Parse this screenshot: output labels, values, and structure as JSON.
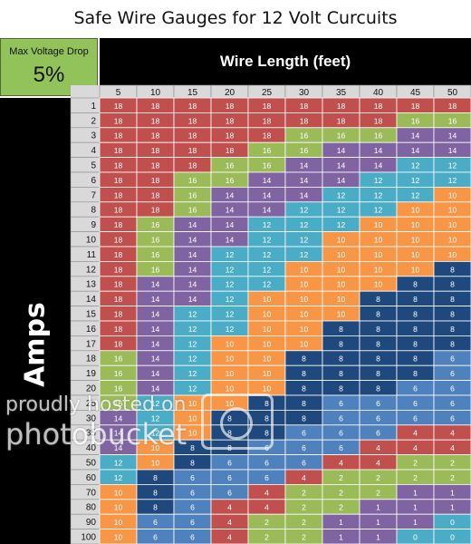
{
  "title": "Safe Wire Gauges for 12 Volt Curcuits",
  "voltage_drop": {
    "label": "Max Voltage Drop",
    "value": "5%"
  },
  "colors": {
    "18": "#c0504d",
    "16": "#9bbb59",
    "14": "#8064a2",
    "12": "#4bacc6",
    "10": "#f79646",
    "8": "#1f497d",
    "6": "#4f81bd",
    "4": "#c0504d",
    "2": "#9bbb59",
    "1": "#8064a2",
    "0": "#4bacc6",
    "header_bg": "#d9d9d9",
    "band_bg": "#000000",
    "voltage_box": "#92c25a"
  },
  "watermark": {
    "line1": "proudly hosted on",
    "line2": "photobucket"
  },
  "chart_data": {
    "type": "table",
    "title": "Safe Wire Gauges for 12 Volt Curcuits",
    "xlabel": "Wire Length (feet)",
    "ylabel": "Amps",
    "columns": [
      5,
      10,
      15,
      20,
      25,
      30,
      35,
      40,
      45,
      50
    ],
    "rows": [
      {
        "amps": 1,
        "gauges": [
          18,
          18,
          18,
          18,
          18,
          18,
          18,
          18,
          18,
          18
        ]
      },
      {
        "amps": 2,
        "gauges": [
          18,
          18,
          18,
          18,
          18,
          18,
          18,
          18,
          16,
          16
        ]
      },
      {
        "amps": 3,
        "gauges": [
          18,
          18,
          18,
          18,
          18,
          16,
          16,
          16,
          14,
          14
        ]
      },
      {
        "amps": 4,
        "gauges": [
          18,
          18,
          18,
          18,
          16,
          16,
          14,
          14,
          14,
          14
        ]
      },
      {
        "amps": 5,
        "gauges": [
          18,
          18,
          18,
          16,
          16,
          14,
          14,
          14,
          12,
          12
        ]
      },
      {
        "amps": 6,
        "gauges": [
          18,
          18,
          16,
          16,
          14,
          14,
          14,
          12,
          12,
          12
        ]
      },
      {
        "amps": 7,
        "gauges": [
          18,
          18,
          16,
          14,
          14,
          14,
          12,
          12,
          12,
          10
        ]
      },
      {
        "amps": 8,
        "gauges": [
          18,
          18,
          16,
          14,
          14,
          12,
          12,
          12,
          10,
          10
        ]
      },
      {
        "amps": 9,
        "gauges": [
          18,
          16,
          14,
          14,
          12,
          12,
          12,
          10,
          10,
          10
        ]
      },
      {
        "amps": 10,
        "gauges": [
          18,
          16,
          14,
          14,
          12,
          12,
          10,
          10,
          10,
          10
        ]
      },
      {
        "amps": 11,
        "gauges": [
          18,
          16,
          14,
          12,
          12,
          12,
          10,
          10,
          10,
          10
        ]
      },
      {
        "amps": 12,
        "gauges": [
          18,
          16,
          14,
          12,
          12,
          10,
          10,
          10,
          10,
          8
        ]
      },
      {
        "amps": 13,
        "gauges": [
          18,
          14,
          14,
          12,
          12,
          10,
          10,
          10,
          8,
          8
        ]
      },
      {
        "amps": 14,
        "gauges": [
          18,
          14,
          14,
          12,
          10,
          10,
          10,
          8,
          8,
          8
        ]
      },
      {
        "amps": 15,
        "gauges": [
          18,
          14,
          12,
          12,
          10,
          10,
          10,
          8,
          8,
          8
        ]
      },
      {
        "amps": 16,
        "gauges": [
          18,
          14,
          12,
          12,
          10,
          10,
          8,
          8,
          8,
          8
        ]
      },
      {
        "amps": 17,
        "gauges": [
          18,
          14,
          12,
          10,
          10,
          10,
          8,
          8,
          8,
          8
        ]
      },
      {
        "amps": 18,
        "gauges": [
          16,
          14,
          12,
          10,
          10,
          8,
          8,
          8,
          8,
          6
        ]
      },
      {
        "amps": 19,
        "gauges": [
          16,
          14,
          12,
          10,
          10,
          8,
          8,
          8,
          8,
          6
        ]
      },
      {
        "amps": 20,
        "gauges": [
          16,
          14,
          12,
          10,
          10,
          8,
          8,
          8,
          6,
          6
        ]
      },
      {
        "amps": 25,
        "gauges": [
          16,
          12,
          10,
          10,
          8,
          8,
          6,
          6,
          6,
          6
        ]
      },
      {
        "amps": 30,
        "gauges": [
          14,
          12,
          10,
          8,
          8,
          8,
          6,
          6,
          6,
          6
        ]
      },
      {
        "amps": 35,
        "gauges": [
          14,
          12,
          10,
          8,
          8,
          6,
          6,
          6,
          4,
          4
        ]
      },
      {
        "amps": 40,
        "gauges": [
          14,
          10,
          8,
          8,
          6,
          6,
          6,
          4,
          4,
          4
        ]
      },
      {
        "amps": 50,
        "gauges": [
          12,
          10,
          8,
          6,
          6,
          6,
          4,
          4,
          2,
          2
        ]
      },
      {
        "amps": 60,
        "gauges": [
          12,
          8,
          6,
          6,
          6,
          4,
          2,
          2,
          2,
          2
        ]
      },
      {
        "amps": 70,
        "gauges": [
          10,
          8,
          6,
          6,
          4,
          2,
          2,
          2,
          1,
          1
        ]
      },
      {
        "amps": 80,
        "gauges": [
          10,
          8,
          6,
          4,
          4,
          2,
          2,
          1,
          1,
          1
        ]
      },
      {
        "amps": 90,
        "gauges": [
          10,
          6,
          6,
          4,
          2,
          2,
          1,
          1,
          1,
          0
        ]
      },
      {
        "amps": 100,
        "gauges": [
          10,
          6,
          6,
          4,
          2,
          2,
          1,
          1,
          0,
          0
        ]
      }
    ]
  }
}
